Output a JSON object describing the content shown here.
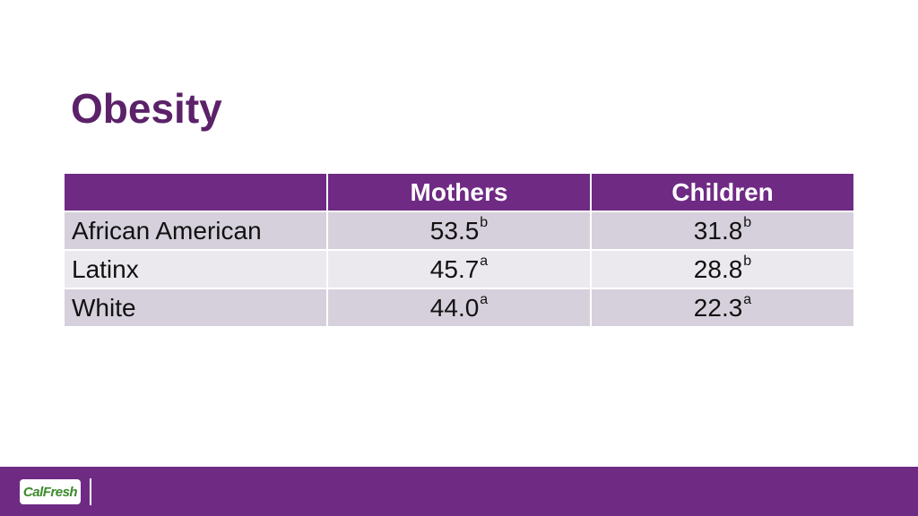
{
  "slide": {
    "title": "Obesity"
  },
  "table": {
    "headers": [
      "",
      "Mothers",
      "Children"
    ],
    "rows": [
      {
        "label": "African American",
        "mothers": {
          "value": "53.5",
          "sup": "b"
        },
        "children": {
          "value": "31.8",
          "sup": "b"
        }
      },
      {
        "label": "Latinx",
        "mothers": {
          "value": "45.7",
          "sup": "a"
        },
        "children": {
          "value": "28.8",
          "sup": "b"
        }
      },
      {
        "label": "White",
        "mothers": {
          "value": "44.0",
          "sup": "a"
        },
        "children": {
          "value": "22.3",
          "sup": "a"
        }
      }
    ]
  },
  "footer": {
    "logo_text": "CalFresh",
    "logo_icon": "calfresh-logo"
  },
  "colors": {
    "title": "#5b2169",
    "header_bg": "#6f2a84",
    "row_odd": "#d6d0dc",
    "row_even": "#ebe8ee",
    "footer_bg": "#6f2a84"
  }
}
